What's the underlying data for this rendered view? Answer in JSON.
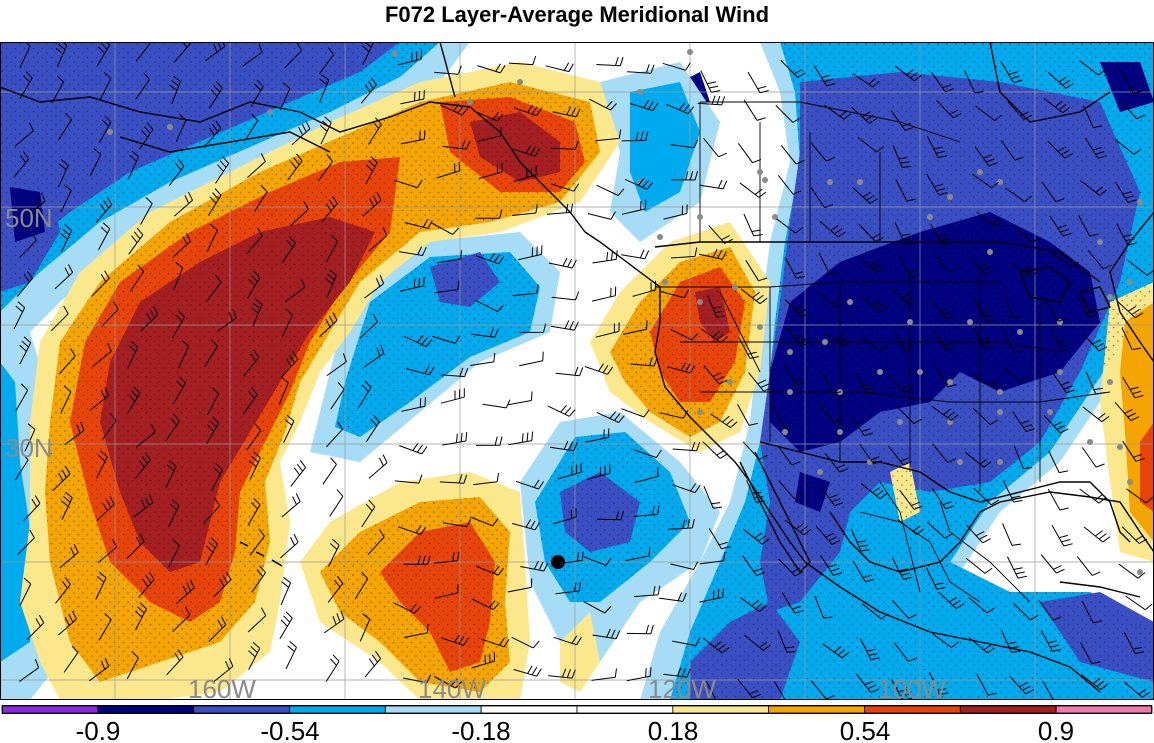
{
  "title": "F072 Layer-Average Meridional Wind",
  "lat_labels": [
    "50N",
    "30N"
  ],
  "lon_labels": [
    "160W",
    "140W",
    "120W",
    "100W"
  ],
  "colorbar": {
    "colors": [
      "#8a2be2",
      "#000080",
      "#3a4fc4",
      "#00aaee",
      "#a6dcf6",
      "#ffffff",
      "#ffffff",
      "#fce88c",
      "#f5a500",
      "#e8440a",
      "#a51e22",
      "#f07ab0"
    ],
    "tick_labels": [
      "-0.9",
      "-0.54",
      "-0.18",
      "0.18",
      "0.54",
      "0.9"
    ]
  },
  "marker": {
    "label": ""
  }
}
